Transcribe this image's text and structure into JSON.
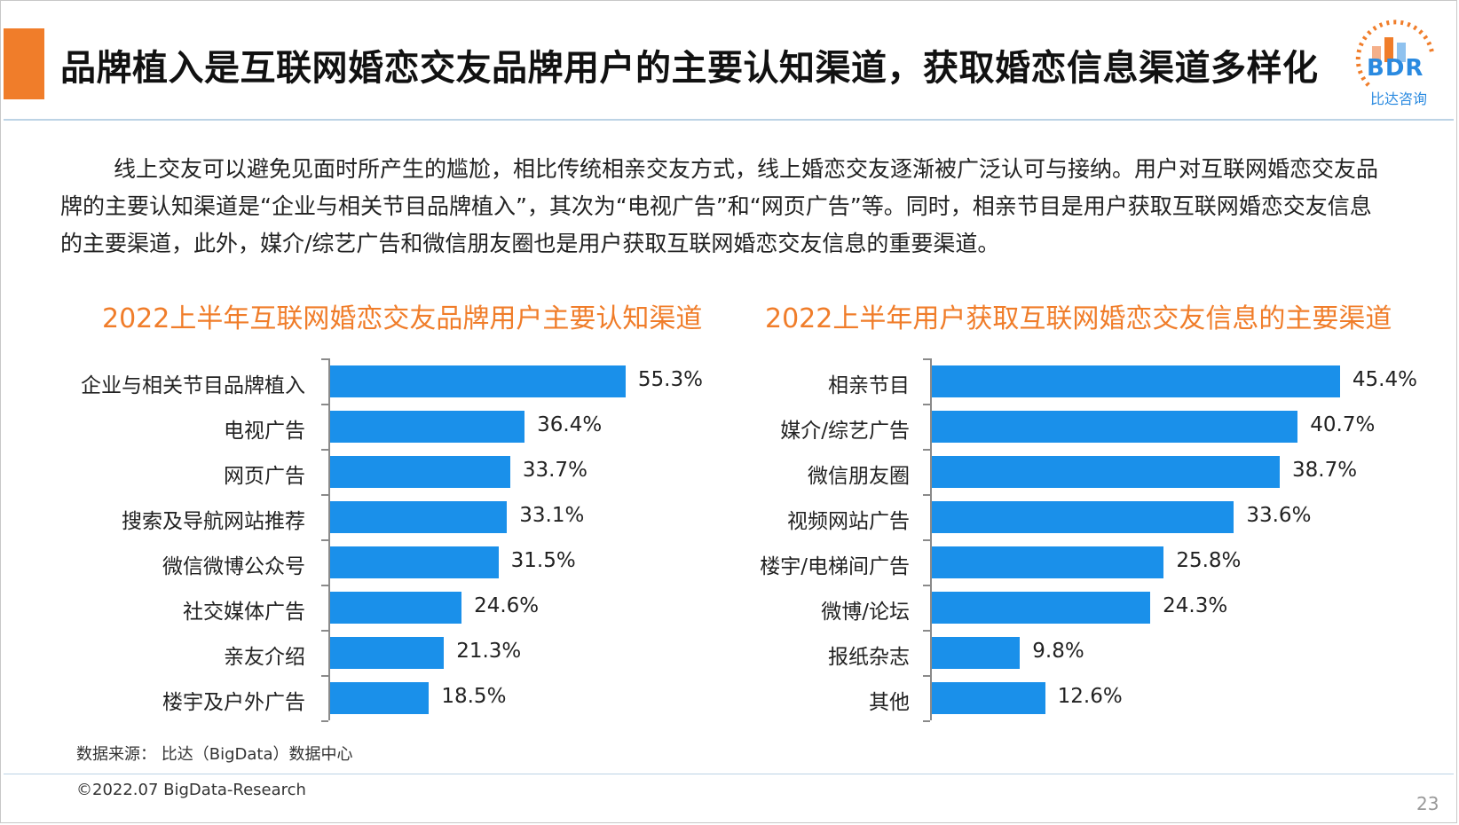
{
  "header": {
    "title": "品牌植入是互联网婚恋交友品牌用户的主要认知渠道，获取婚恋信息渠道多样化",
    "logo_text": "BDR",
    "logo_sub": "比达咨询"
  },
  "intro": "线上交友可以避免见面时所产生的尴尬，相比传统相亲交友方式，线上婚恋交友逐渐被广泛认可与接纳。用户对互联网婚恋交友品牌的主要认知渠道是“企业与相关节目品牌植入”，其次为“电视广告”和“网页广告”等。同时，相亲节目是用户获取互联网婚恋交友信息的主要渠道，此外，媒介/综艺广告和微信朋友圈也是用户获取互联网婚恋交友信息的重要渠道。",
  "colors": {
    "accent": "#f07d2a",
    "bar": "#1a90ea",
    "rule": "#bcd3e5"
  },
  "chart_data": [
    {
      "type": "bar",
      "orientation": "horizontal",
      "title": "2022上半年互联网婚恋交友品牌用户主要认知渠道",
      "categories": [
        "企业与相关节目品牌植入",
        "电视广告",
        "网页广告",
        "搜索及导航网站推荐",
        "微信微博公众号",
        "社交媒体广告",
        "亲友介绍",
        "楼宇及户外广告"
      ],
      "values": [
        55.3,
        36.4,
        33.7,
        33.1,
        31.5,
        24.6,
        21.3,
        18.5
      ],
      "labels": [
        "55.3%",
        "36.4%",
        "33.7%",
        "33.1%",
        "31.5%",
        "24.6%",
        "21.3%",
        "18.5%"
      ],
      "unit": "%",
      "xlim": [
        0,
        60
      ],
      "grid": false
    },
    {
      "type": "bar",
      "orientation": "horizontal",
      "title": "2022上半年用户获取互联网婚恋交友信息的主要渠道",
      "categories": [
        "相亲节目",
        "媒介/综艺广告",
        "微信朋友圈",
        "视频网站广告",
        "楼宇/电梯间广告",
        "微博/论坛",
        "报纸杂志",
        "其他"
      ],
      "values": [
        45.4,
        40.7,
        38.7,
        33.6,
        25.8,
        24.3,
        9.8,
        12.6
      ],
      "labels": [
        "45.4%",
        "40.7%",
        "38.7%",
        "33.6%",
        "25.8%",
        "24.3%",
        "9.8%",
        "12.6%"
      ],
      "unit": "%",
      "xlim": [
        0,
        60
      ],
      "grid": false
    }
  ],
  "footer": {
    "source": "数据来源： 比达（BigData）数据中心",
    "copyright": "©2022.07 BigData-Research",
    "page_number": "23"
  }
}
